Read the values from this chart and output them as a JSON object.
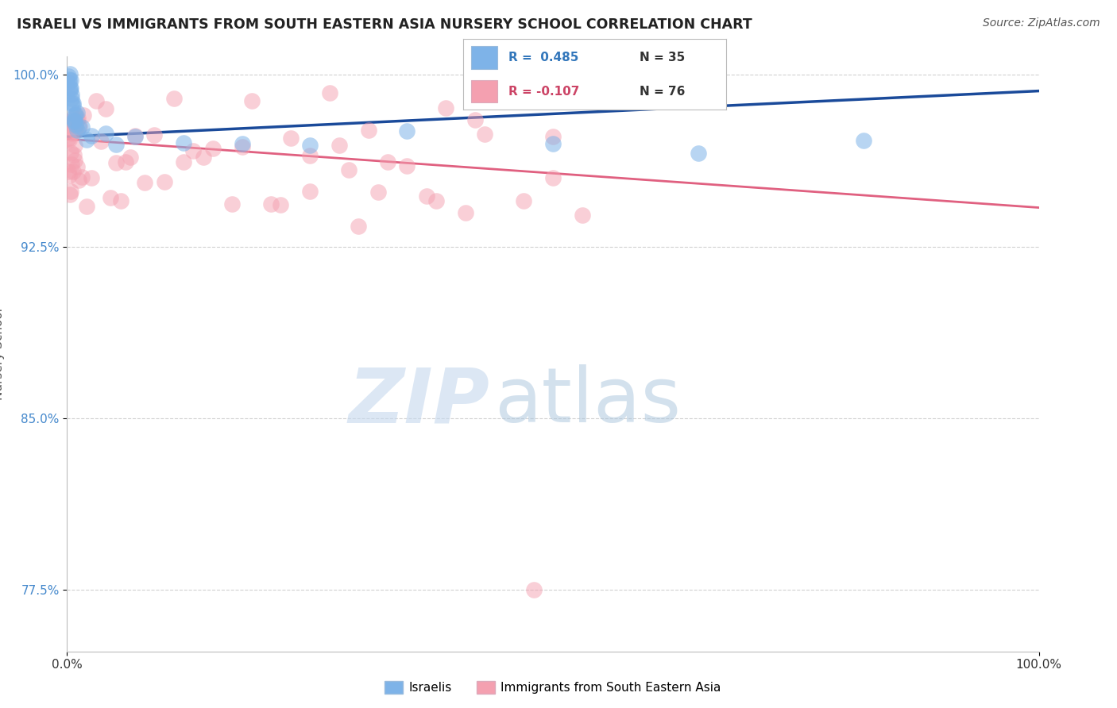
{
  "title": "ISRAELI VS IMMIGRANTS FROM SOUTH EASTERN ASIA NURSERY SCHOOL CORRELATION CHART",
  "source": "Source: ZipAtlas.com",
  "ylabel": "Nursery School",
  "r1": 0.485,
  "n1": 35,
  "r2": -0.107,
  "n2": 76,
  "color_blue": "#7EB3E8",
  "color_pink": "#F4A0B0",
  "line_blue": "#1A4A9A",
  "line_pink": "#E06080",
  "background_color": "#FFFFFF",
  "grid_color": "#CCCCCC",
  "legend_label_1": "Israelis",
  "legend_label_2": "Immigrants from South Eastern Asia",
  "watermark_zip": "ZIP",
  "watermark_atlas": "atlas"
}
